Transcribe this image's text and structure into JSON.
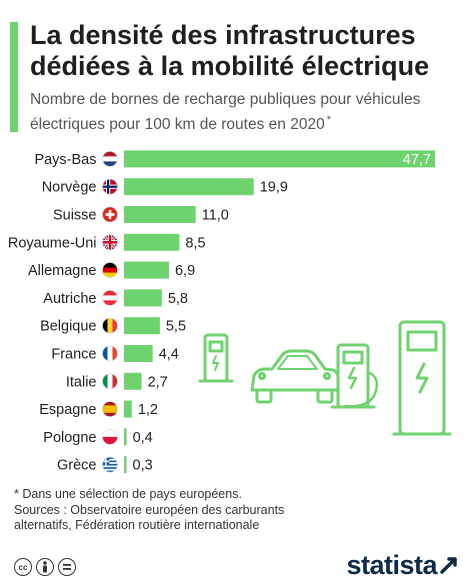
{
  "header": {
    "title_line1": "La densité des infrastructures",
    "title_line2": "dédiées à la mobilité électrique",
    "subtitle_line1": "Nombre de bornes de recharge publiques pour véhicules",
    "subtitle_line2": "électriques pour 100 km de routes en 2020",
    "subtitle_mark": "*"
  },
  "chart_data": {
    "type": "bar",
    "orientation": "horizontal",
    "categories": [
      "Pays-Bas",
      "Norvège",
      "Suisse",
      "Royaume-Uni",
      "Allemagne",
      "Autriche",
      "Belgique",
      "France",
      "Italie",
      "Espagne",
      "Pologne",
      "Grèce"
    ],
    "values": [
      47.7,
      19.9,
      11.0,
      8.5,
      6.9,
      5.8,
      5.5,
      4.4,
      2.7,
      1.2,
      0.4,
      0.3
    ],
    "value_labels": [
      "47,7",
      "19,9",
      "11,0",
      "8,5",
      "6,9",
      "5,8",
      "5,5",
      "4,4",
      "2,7",
      "1,2",
      "0,4",
      "0,3"
    ],
    "flags": [
      "nl",
      "no",
      "ch",
      "gb",
      "de",
      "at",
      "be",
      "fr",
      "it",
      "es",
      "pl",
      "gr"
    ],
    "bar_color": "#6ed36e",
    "xlim": [
      0,
      47.7
    ],
    "grid": false
  },
  "notes": {
    "footnote": "* Dans une sélection de pays européens.",
    "sources_line1": "Sources : Observatoire européen des carburants",
    "sources_line2": "alternatifs, Fédération routière internationale"
  },
  "footer": {
    "cc_icons": [
      "cc-icon",
      "by-icon",
      "nd-icon"
    ],
    "logo": "statista"
  },
  "colors": {
    "accent": "#6ed36e",
    "illustration": "#6ed36e",
    "logo": "#0f2a46"
  }
}
